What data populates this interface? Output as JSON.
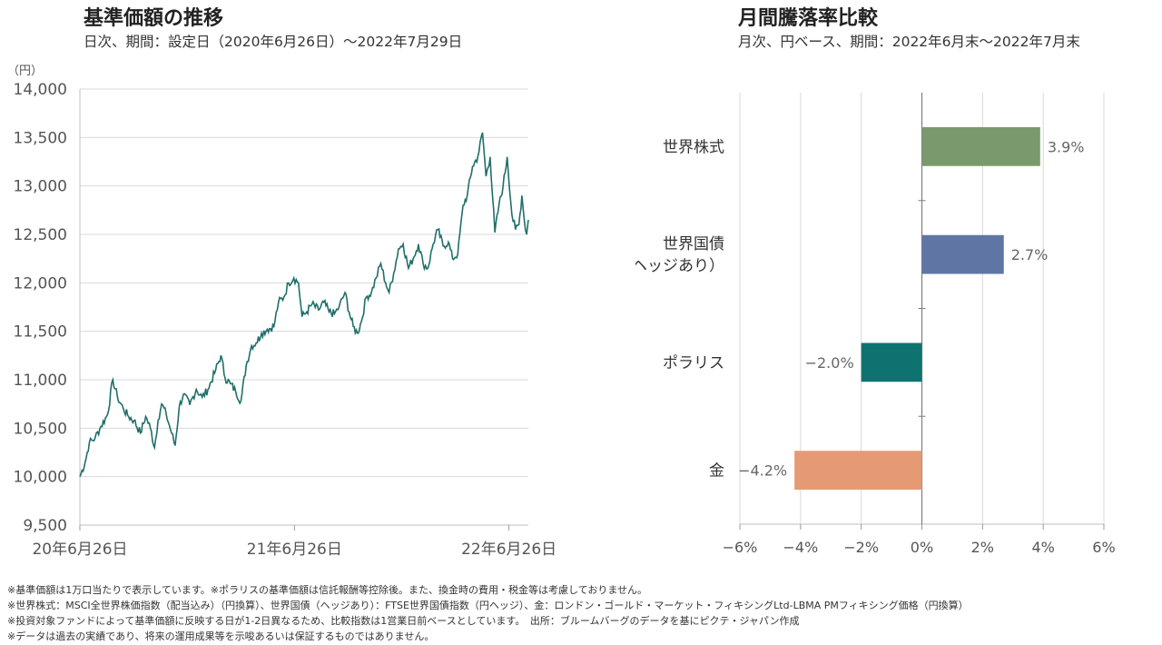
{
  "left": {
    "title": "基準価額の推移",
    "subtitle": "日次、期間：設定日（2020年6月26日）〜2022年7月29日"
  },
  "right": {
    "title": "月間騰落率比較",
    "subtitle": "月次、円ベース、期間：2022年6月末〜2022年7月末"
  },
  "notes": [
    "※基準価額は1万口当たりで表示しています。※ポラリスの基準価額は信託報酬等控除後。また、換金時の費用・税金等は考慮しておりません。",
    "※世界株式：MSCI全世界株価指数（配当込み）（円換算）、世界国債（ヘッジあり）：FTSE世界国債指数（円ヘッジ）、金：ロンドン・ゴールド・マーケット・フィキシングLtd-LBMA PMフィキシング価格（円換算）",
    "※投資対象ファンドによって基準価額に反映する日が1-2日異なるため、比較指数は1営業日前ベースとしています。　出所：ブルームバーグのデータを基にピクテ・ジャパン作成",
    "※データは過去の実績であり、将来の運用成果等を示唆あるいは保証するものではありません。"
  ],
  "chart_data": [
    {
      "type": "line",
      "title": "基準価額の推移",
      "ylabel": "（円）",
      "ylim": [
        9500,
        14000
      ],
      "yticks": [
        9500,
        10000,
        10500,
        11000,
        11500,
        12000,
        12500,
        13000,
        13500,
        14000
      ],
      "ytick_labels": [
        "9,500",
        "10,000",
        "10,500",
        "11,000",
        "11,500",
        "12,000",
        "12,500",
        "13,000",
        "13,500",
        "14,000"
      ],
      "xlim": [
        "2020-06-26",
        "2022-07-29"
      ],
      "xticks": [
        "2020-06-26",
        "2021-06-26",
        "2022-06-26"
      ],
      "xtick_labels": [
        "20年6月26日",
        "21年6月26日",
        "22年6月26日"
      ],
      "grid": true,
      "series": [
        {
          "color": "#1f6f6a",
          "points": [
            [
              "2020-06-26",
              10000
            ],
            [
              "2020-07-05",
              10150
            ],
            [
              "2020-07-12",
              10350
            ],
            [
              "2020-07-22",
              10400
            ],
            [
              "2020-08-01",
              10520
            ],
            [
              "2020-08-12",
              10640
            ],
            [
              "2020-08-21",
              11000
            ],
            [
              "2020-08-29",
              10820
            ],
            [
              "2020-09-08",
              10700
            ],
            [
              "2020-09-17",
              10620
            ],
            [
              "2020-09-26",
              10580
            ],
            [
              "2020-10-07",
              10450
            ],
            [
              "2020-10-16",
              10620
            ],
            [
              "2020-10-24",
              10500
            ],
            [
              "2020-10-31",
              10300
            ],
            [
              "2020-11-06",
              10580
            ],
            [
              "2020-11-12",
              10750
            ],
            [
              "2020-11-20",
              10640
            ],
            [
              "2020-11-29",
              10450
            ],
            [
              "2020-12-05",
              10320
            ],
            [
              "2020-12-12",
              10720
            ],
            [
              "2020-12-19",
              10850
            ],
            [
              "2020-12-30",
              10740
            ],
            [
              "2021-01-10",
              10900
            ],
            [
              "2021-01-20",
              10820
            ],
            [
              "2021-01-30",
              10900
            ],
            [
              "2021-02-12",
              11100
            ],
            [
              "2021-02-21",
              11250
            ],
            [
              "2021-02-28",
              11020
            ],
            [
              "2021-03-09",
              10960
            ],
            [
              "2021-03-18",
              10880
            ],
            [
              "2021-03-27",
              10780
            ],
            [
              "2021-04-05",
              11150
            ],
            [
              "2021-04-14",
              11350
            ],
            [
              "2021-04-22",
              11380
            ],
            [
              "2021-05-01",
              11480
            ],
            [
              "2021-05-11",
              11520
            ],
            [
              "2021-05-22",
              11550
            ],
            [
              "2021-05-30",
              11800
            ],
            [
              "2021-06-08",
              11850
            ],
            [
              "2021-06-16",
              12000
            ],
            [
              "2021-06-25",
              12050
            ],
            [
              "2021-07-03",
              12000
            ],
            [
              "2021-07-09",
              11650
            ],
            [
              "2021-07-17",
              11700
            ],
            [
              "2021-07-26",
              11780
            ],
            [
              "2021-08-06",
              11720
            ],
            [
              "2021-08-15",
              11800
            ],
            [
              "2021-08-24",
              11700
            ],
            [
              "2021-09-02",
              11680
            ],
            [
              "2021-09-10",
              11750
            ],
            [
              "2021-09-20",
              11900
            ],
            [
              "2021-09-27",
              11700
            ],
            [
              "2021-10-04",
              11550
            ],
            [
              "2021-10-11",
              11480
            ],
            [
              "2021-10-18",
              11600
            ],
            [
              "2021-10-26",
              11850
            ],
            [
              "2021-11-04",
              11900
            ],
            [
              "2021-11-12",
              12050
            ],
            [
              "2021-11-20",
              12200
            ],
            [
              "2021-11-28",
              12000
            ],
            [
              "2021-12-04",
              11900
            ],
            [
              "2021-12-12",
              12100
            ],
            [
              "2021-12-20",
              12350
            ],
            [
              "2021-12-28",
              12400
            ],
            [
              "2022-01-06",
              12150
            ],
            [
              "2022-01-14",
              12250
            ],
            [
              "2022-01-23",
              12400
            ],
            [
              "2022-01-31",
              12200
            ],
            [
              "2022-02-08",
              12150
            ],
            [
              "2022-02-17",
              12400
            ],
            [
              "2022-02-25",
              12550
            ],
            [
              "2022-03-06",
              12380
            ],
            [
              "2022-03-15",
              12420
            ],
            [
              "2022-03-22",
              12250
            ],
            [
              "2022-03-31",
              12300
            ],
            [
              "2022-04-09",
              12800
            ],
            [
              "2022-04-16",
              12900
            ],
            [
              "2022-04-25",
              13200
            ],
            [
              "2022-05-04",
              13300
            ],
            [
              "2022-05-12",
              13550
            ],
            [
              "2022-05-18",
              13100
            ],
            [
              "2022-05-25",
              13300
            ],
            [
              "2022-06-02",
              12520
            ],
            [
              "2022-06-09",
              12800
            ],
            [
              "2022-06-16",
              13000
            ],
            [
              "2022-06-23",
              13300
            ],
            [
              "2022-07-01",
              12700
            ],
            [
              "2022-07-07",
              12550
            ],
            [
              "2022-07-13",
              12600
            ],
            [
              "2022-07-18",
              12900
            ],
            [
              "2022-07-22",
              12650
            ],
            [
              "2022-07-26",
              12500
            ],
            [
              "2022-07-29",
              12650
            ]
          ]
        }
      ]
    },
    {
      "type": "bar",
      "orientation": "horizontal",
      "title": "月間騰落率比較",
      "categories": [
        [
          "世界株式"
        ],
        [
          "世界国債",
          "（ヘッジあり）"
        ],
        [
          "ポラリス"
        ],
        [
          "金"
        ]
      ],
      "values": [
        3.9,
        2.7,
        -2.0,
        -4.2
      ],
      "value_labels": [
        "3.9%",
        "2.7%",
        "−2.0%",
        "−4.2%"
      ],
      "colors": [
        "#7a9a6d",
        "#5f76a5",
        "#0e7370",
        "#e59a74"
      ],
      "xlim": [
        -6,
        6
      ],
      "xticks": [
        -6,
        -4,
        -2,
        0,
        2,
        4,
        6
      ],
      "xtick_labels": [
        "−6%",
        "−4%",
        "−2%",
        "0%",
        "2%",
        "4%",
        "6%"
      ],
      "grid": true
    }
  ]
}
